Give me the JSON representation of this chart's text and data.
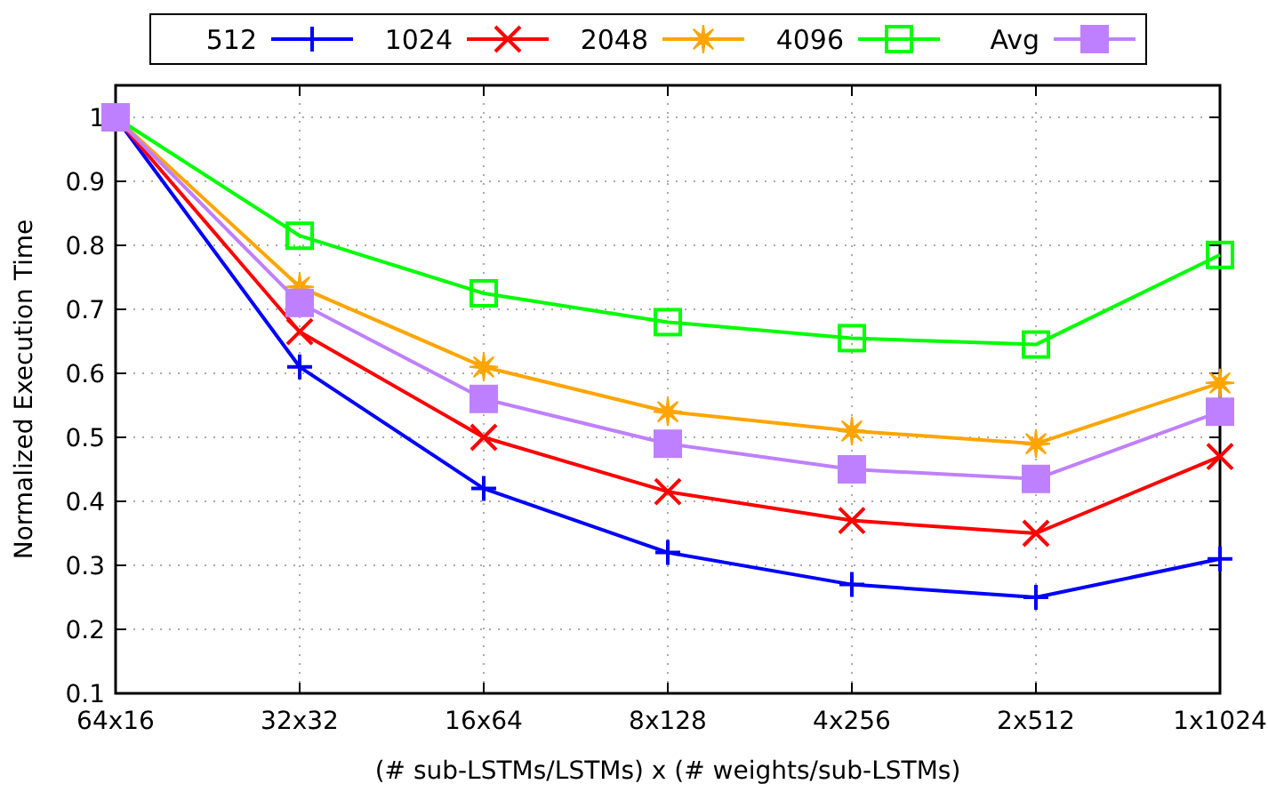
{
  "chart_data": {
    "type": "line",
    "xlabel": "(# sub-LSTMs/LSTMs) x (# weights/sub-LSTMs)",
    "ylabel": "Normalized Execution Time",
    "categories": [
      "64x16",
      "32x32",
      "16x64",
      "8x128",
      "4x256",
      "2x512",
      "1x1024"
    ],
    "ylim": [
      0.1,
      1.05
    ],
    "yticks": [
      0.1,
      0.2,
      0.3,
      0.4,
      0.5,
      0.6,
      0.7,
      0.8,
      0.9,
      1
    ],
    "grid": true,
    "legend": "top",
    "line_style": "solid",
    "series": [
      {
        "name": "512",
        "color": "#0000ff",
        "marker": "plus",
        "values": [
          1,
          0.61,
          0.42,
          0.32,
          0.27,
          0.25,
          0.31
        ]
      },
      {
        "name": "1024",
        "color": "#ff0000",
        "marker": "cross",
        "values": [
          1,
          0.665,
          0.5,
          0.415,
          0.37,
          0.35,
          0.47
        ]
      },
      {
        "name": "2048",
        "color": "#ffa500",
        "marker": "star",
        "values": [
          1,
          0.735,
          0.61,
          0.54,
          0.51,
          0.49,
          0.585
        ]
      },
      {
        "name": "4096",
        "color": "#00ff00",
        "marker": "square-open",
        "values": [
          1,
          0.815,
          0.725,
          0.68,
          0.655,
          0.645,
          0.785
        ]
      },
      {
        "name": "Avg",
        "color": "#bf80ff",
        "marker": "square",
        "values": [
          1,
          0.71,
          0.56,
          0.49,
          0.45,
          0.435,
          0.54
        ]
      }
    ]
  }
}
